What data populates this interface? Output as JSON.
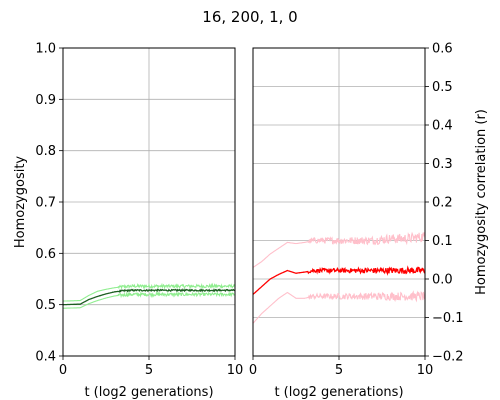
{
  "figure": {
    "title": "16, 200, 1, 0"
  },
  "colors": {
    "grid": "#b0b0b0",
    "left_mean": "#1b5e20",
    "left_band": "#90ee90",
    "right_mean": "#ff0000",
    "right_band": "#ffc0cb"
  },
  "chart_data": [
    {
      "type": "line",
      "xlabel": "t (log2 generations)",
      "ylabel": "Homozygosity",
      "xlim": [
        0,
        10
      ],
      "ylim": [
        0.4,
        1.0
      ],
      "xticks": [
        "0",
        "5",
        "10"
      ],
      "yticks": [
        "0.4",
        "0.5",
        "0.6",
        "0.7",
        "0.8",
        "0.9",
        "1.0"
      ],
      "grid": true,
      "series": [
        {
          "role": "upper",
          "color": "#90ee90",
          "x": [
            0,
            1,
            1.5,
            2,
            2.5,
            3,
            3.5,
            4,
            5,
            6,
            7,
            8,
            9,
            10
          ],
          "y": [
            0.507,
            0.508,
            0.518,
            0.526,
            0.53,
            0.533,
            0.535,
            0.536,
            0.536,
            0.536,
            0.536,
            0.536,
            0.536,
            0.536
          ]
        },
        {
          "role": "mean",
          "color": "#1b5e20",
          "x": [
            0,
            1,
            1.5,
            2,
            2.5,
            3,
            3.5,
            4,
            5,
            6,
            7,
            8,
            9,
            10
          ],
          "y": [
            0.5,
            0.501,
            0.51,
            0.516,
            0.521,
            0.525,
            0.527,
            0.528,
            0.528,
            0.528,
            0.528,
            0.528,
            0.528,
            0.528
          ]
        },
        {
          "role": "lower",
          "color": "#90ee90",
          "x": [
            0,
            1,
            1.5,
            2,
            2.5,
            3,
            3.5,
            4,
            5,
            6,
            7,
            8,
            9,
            10
          ],
          "y": [
            0.493,
            0.494,
            0.502,
            0.508,
            0.513,
            0.517,
            0.519,
            0.52,
            0.52,
            0.52,
            0.52,
            0.52,
            0.52,
            0.52
          ]
        }
      ]
    },
    {
      "type": "line",
      "xlabel": "t (log2 generations)",
      "ylabel": "Homozygosity correlation (r)",
      "xlim": [
        0,
        10
      ],
      "ylim": [
        -0.2,
        0.6
      ],
      "xticks": [
        "0",
        "5",
        "10"
      ],
      "yticks": [
        "-0.2",
        "-0.1",
        "0.0",
        "0.1",
        "0.2",
        "0.3",
        "0.4",
        "0.5",
        "0.6"
      ],
      "y_axis_side": "right",
      "grid": true,
      "series": [
        {
          "role": "upper",
          "color": "#ffc0cb",
          "x": [
            0,
            0.5,
            1,
            1.5,
            2,
            2.5,
            3,
            3.5,
            4,
            5,
            6,
            7,
            8,
            9,
            10
          ],
          "y": [
            0.03,
            0.045,
            0.065,
            0.08,
            0.095,
            0.092,
            0.095,
            0.1,
            0.1,
            0.1,
            0.1,
            0.1,
            0.105,
            0.105,
            0.11
          ]
        },
        {
          "role": "mean",
          "color": "#ff0000",
          "x": [
            0,
            0.5,
            1,
            1.5,
            2,
            2.5,
            3,
            3.5,
            4,
            5,
            6,
            7,
            8,
            9,
            10
          ],
          "y": [
            -0.04,
            -0.02,
            0.0,
            0.012,
            0.022,
            0.015,
            0.018,
            0.022,
            0.022,
            0.022,
            0.022,
            0.022,
            0.022,
            0.022,
            0.022
          ]
        },
        {
          "role": "lower",
          "color": "#ffc0cb",
          "x": [
            0,
            0.5,
            1,
            1.5,
            2,
            2.5,
            3,
            3.5,
            4,
            5,
            6,
            7,
            8,
            9,
            10
          ],
          "y": [
            -0.115,
            -0.09,
            -0.07,
            -0.05,
            -0.035,
            -0.05,
            -0.05,
            -0.045,
            -0.045,
            -0.045,
            -0.045,
            -0.045,
            -0.045,
            -0.045,
            -0.045
          ]
        }
      ]
    }
  ]
}
